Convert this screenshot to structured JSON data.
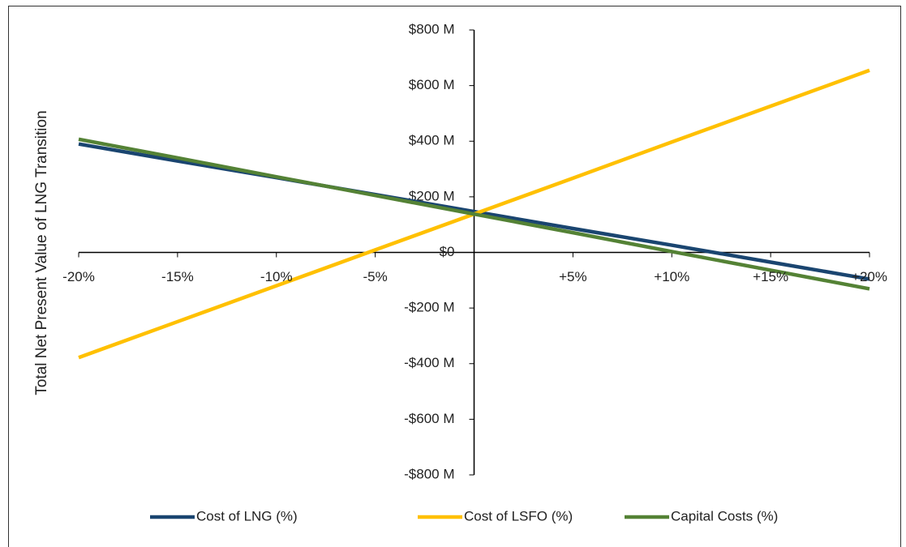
{
  "chart_data": {
    "type": "line",
    "y_label": "Total Net Present Value of LNG Transition",
    "x": [
      -20,
      -15,
      -10,
      -5,
      0,
      5,
      10,
      15,
      20
    ],
    "xlim": [
      -20,
      20
    ],
    "xticks": [
      {
        "value": -20,
        "label": "-20%"
      },
      {
        "value": -15,
        "label": "-15%"
      },
      {
        "value": -10,
        "label": "-10%"
      },
      {
        "value": -5,
        "label": "-5%"
      },
      {
        "value": 5,
        "label": "+5%"
      },
      {
        "value": 10,
        "label": "+10%"
      },
      {
        "value": 15,
        "label": "+15%"
      },
      {
        "value": 20,
        "label": "+20%"
      }
    ],
    "ylim": [
      -800,
      800
    ],
    "yticks": [
      {
        "value": -800,
        "label": "-$800 M"
      },
      {
        "value": -600,
        "label": "-$600 M"
      },
      {
        "value": -400,
        "label": "-$400 M"
      },
      {
        "value": -200,
        "label": "-$200 M"
      },
      {
        "value": 0,
        "label": "$0"
      },
      {
        "value": 200,
        "label": "$200 M"
      },
      {
        "value": 400,
        "label": "$400 M"
      },
      {
        "value": 600,
        "label": "$600 M"
      },
      {
        "value": 800,
        "label": "$800 M"
      }
    ],
    "grid": false,
    "legend": "bottom",
    "series": [
      {
        "name": "Cost of LNG (%)",
        "color": "#1a4570",
        "values": [
          390,
          329,
          269,
          208,
          147,
          86,
          26,
          -35,
          -96
        ]
      },
      {
        "name": "Cost of LSFO (%)",
        "color": "#ffc000",
        "values": [
          -378,
          -249,
          -120,
          9,
          138,
          267,
          397,
          526,
          655
        ]
      },
      {
        "name": "Capital Costs (%)",
        "color": "#548235",
        "values": [
          407,
          340,
          272,
          205,
          138,
          71,
          3,
          -64,
          -131
        ]
      }
    ]
  }
}
